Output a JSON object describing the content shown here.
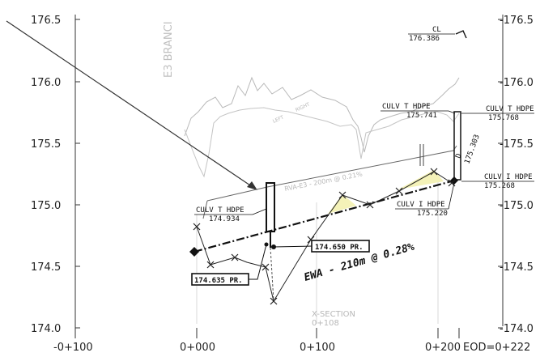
{
  "axes": {
    "y_left_ticks": [
      "176.5",
      "176.0",
      "175.5",
      "175.0",
      "174.5",
      "174.0"
    ],
    "y_right_ticks": [
      "-176.5",
      "-176.0",
      "-175.5",
      "-175.0",
      "-174.5",
      "-174.0"
    ],
    "x_ticks": [
      "-0+100",
      "0+000",
      "0+100",
      "0+200"
    ],
    "eod_label": "EOD=0+222"
  },
  "labels": {
    "branch_watermark": "E3 BRANCI",
    "cl_title": "CL",
    "cl_value": "176.386",
    "culv_t_left_title": "CULV T HDPE",
    "culv_t_left_value": "174.934",
    "culv_t_mid_title": "CULV T HDPE",
    "culv_t_mid_value": "175.741",
    "culv_t_right_title": "CULV T HDPE",
    "culv_t_right_value": "175.768",
    "culv_i_right_title": "CULV I HDPE",
    "culv_i_right_value": "175.268",
    "culv_i_mid_title": "CULV I HDPE",
    "culv_i_mid_value": "175.220",
    "invert_rot_title": "D",
    "invert_rot_value": "175.303",
    "box_pr_1": "174.650 PR.",
    "box_pr_2": "174.635 PR.",
    "ewa_grade": "EWA - 210m @ 0.28%",
    "rva_faint": "RVA-E3 - 200m @ 0.21%",
    "xsection_title": "X-SECTION",
    "xsection_value": "0+108",
    "lt_faint": "LEFT",
    "rt_faint": "RIGHT"
  }
}
